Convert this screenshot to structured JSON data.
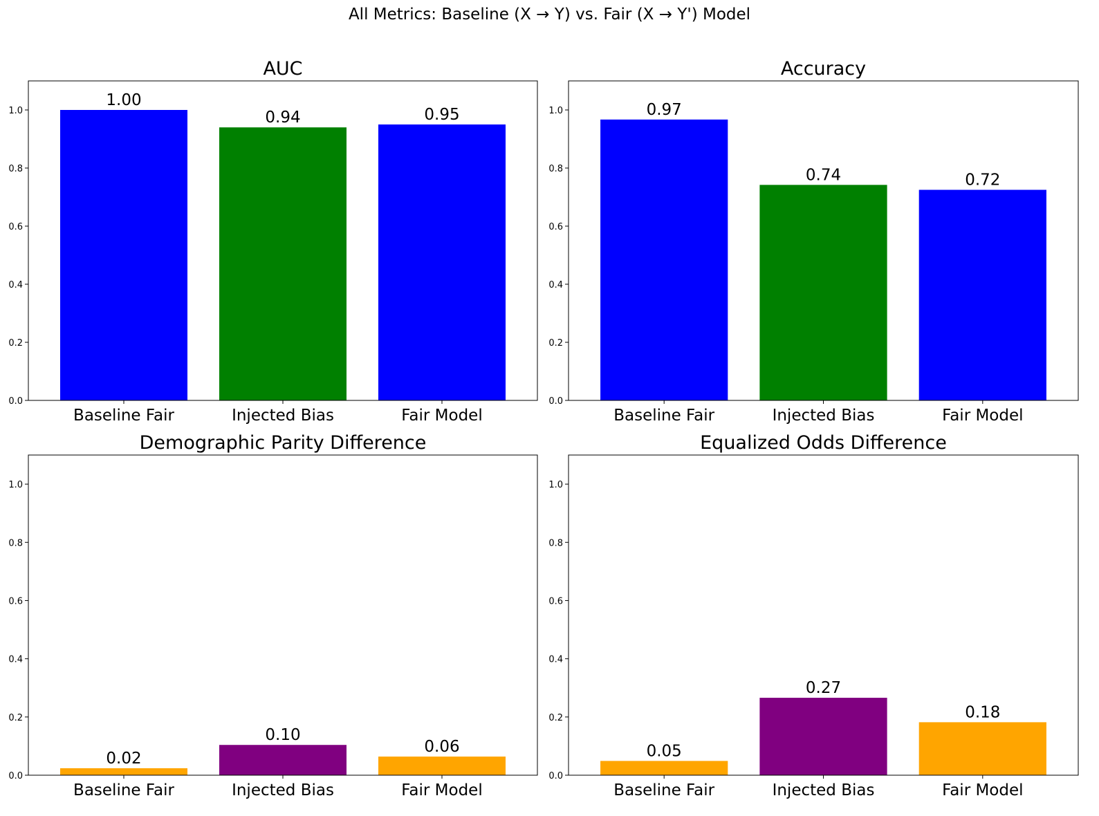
{
  "figure": {
    "suptitle": "All Metrics: Baseline (X → Y) vs. Fair (X → Y') Model"
  },
  "chart_data": [
    {
      "type": "bar",
      "title": "AUC",
      "xlabel": "",
      "ylabel": "",
      "categories": [
        "Baseline Fair",
        "Injected Bias",
        "Fair Model"
      ],
      "values": [
        1.0,
        0.94,
        0.95
      ],
      "value_labels": [
        "1.00",
        "0.94",
        "0.95"
      ],
      "colors": [
        "#0000ff",
        "#008000",
        "#0000ff"
      ],
      "ylim": [
        0,
        1.1
      ],
      "yticks": [
        0.0,
        0.2,
        0.4,
        0.6,
        0.8,
        1.0
      ],
      "ytick_labels": [
        "0.0",
        "0.2",
        "0.4",
        "0.6",
        "0.8",
        "1.0"
      ],
      "grid": false
    },
    {
      "type": "bar",
      "title": "Accuracy",
      "xlabel": "",
      "ylabel": "",
      "categories": [
        "Baseline Fair",
        "Injected Bias",
        "Fair Model"
      ],
      "values": [
        0.967,
        0.742,
        0.725
      ],
      "value_labels": [
        "0.97",
        "0.74",
        "0.72"
      ],
      "colors": [
        "#0000ff",
        "#008000",
        "#0000ff"
      ],
      "ylim": [
        0,
        1.1
      ],
      "yticks": [
        0.0,
        0.2,
        0.4,
        0.6,
        0.8,
        1.0
      ],
      "ytick_labels": [
        "0.0",
        "0.2",
        "0.4",
        "0.6",
        "0.8",
        "1.0"
      ],
      "grid": false
    },
    {
      "type": "bar",
      "title": "Demographic Parity Difference",
      "xlabel": "",
      "ylabel": "",
      "categories": [
        "Baseline Fair",
        "Injected Bias",
        "Fair Model"
      ],
      "values": [
        0.024,
        0.104,
        0.064
      ],
      "value_labels": [
        "0.02",
        "0.10",
        "0.06"
      ],
      "colors": [
        "#ffa500",
        "#800080",
        "#ffa500"
      ],
      "ylim": [
        0,
        1.1
      ],
      "yticks": [
        0.0,
        0.2,
        0.4,
        0.6,
        0.8,
        1.0
      ],
      "ytick_labels": [
        "0.0",
        "0.2",
        "0.4",
        "0.6",
        "0.8",
        "1.0"
      ],
      "grid": false
    },
    {
      "type": "bar",
      "title": "Equalized Odds Difference",
      "xlabel": "",
      "ylabel": "",
      "categories": [
        "Baseline Fair",
        "Injected Bias",
        "Fair Model"
      ],
      "values": [
        0.049,
        0.266,
        0.182
      ],
      "value_labels": [
        "0.05",
        "0.27",
        "0.18"
      ],
      "colors": [
        "#ffa500",
        "#800080",
        "#ffa500"
      ],
      "ylim": [
        0,
        1.1
      ],
      "yticks": [
        0.0,
        0.2,
        0.4,
        0.6,
        0.8,
        1.0
      ],
      "ytick_labels": [
        "0.0",
        "0.2",
        "0.4",
        "0.6",
        "0.8",
        "1.0"
      ],
      "grid": false
    }
  ]
}
